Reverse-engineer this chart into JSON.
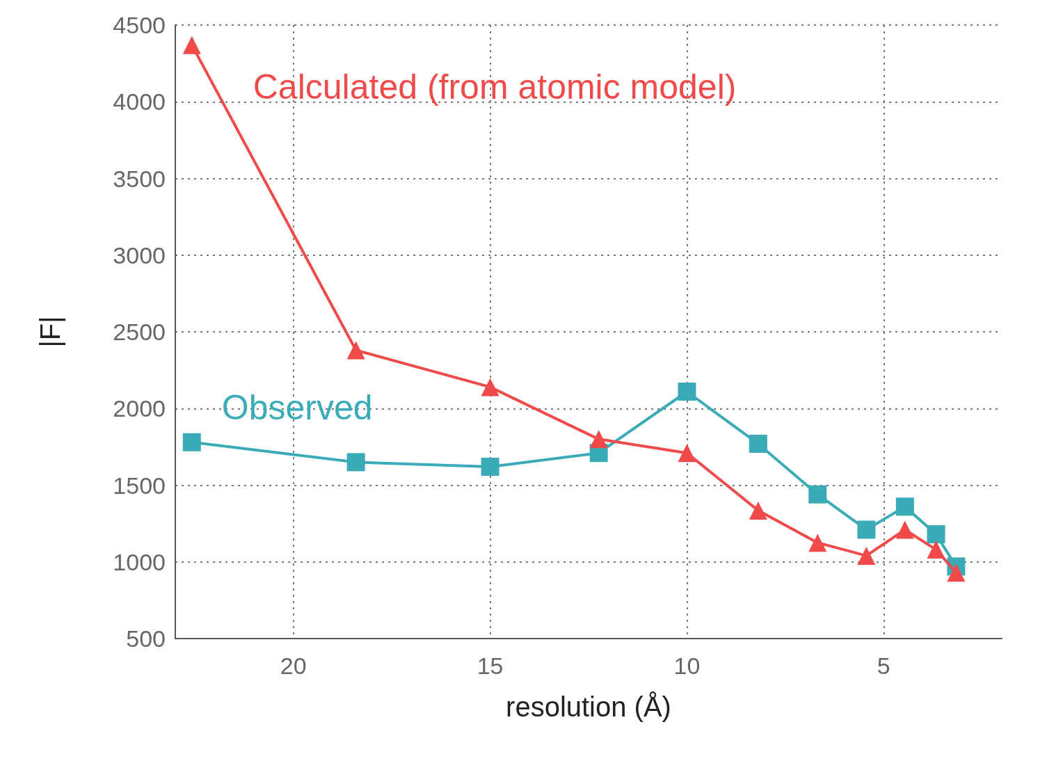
{
  "chart_data": {
    "type": "line",
    "xlabel": "resolution (Å)",
    "ylabel": "|F|",
    "xlim": [
      23,
      2
    ],
    "xticks": [
      20,
      15,
      10,
      5
    ],
    "ylim": [
      500,
      4500
    ],
    "yticks": [
      500,
      1000,
      1500,
      2000,
      2500,
      3000,
      3500,
      4000,
      4500
    ],
    "grid": true,
    "legend": false,
    "line_style": "solid",
    "series": [
      {
        "name": "Calculated (from atomic model)",
        "color": "#f04a4a",
        "marker": "triangle",
        "x": [
          22.58,
          18.41,
          15,
          12.24,
          10,
          8.19,
          6.68,
          5.44,
          4.46,
          3.67,
          3.16
        ],
        "values": [
          4370,
          2380,
          2140,
          1800,
          1710,
          1335,
          1125,
          1040,
          1210,
          1080,
          930
        ]
      },
      {
        "name": "Observed",
        "color": "#3aacb8",
        "marker": "square",
        "x": [
          22.58,
          18.41,
          15,
          12.24,
          10,
          8.19,
          6.68,
          5.44,
          4.46,
          3.67,
          3.16
        ],
        "values": [
          1780,
          1650,
          1620,
          1710,
          2110,
          1770,
          1440,
          1210,
          1360,
          1180,
          970
        ]
      }
    ]
  }
}
